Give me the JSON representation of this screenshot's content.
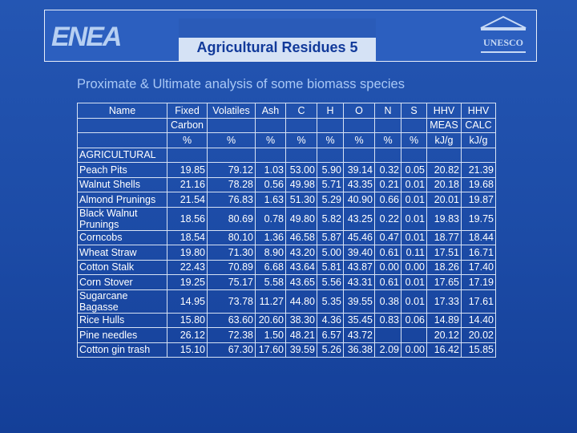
{
  "header": {
    "title": "Agricultural Residues 5",
    "logo_left": "ENEA",
    "logo_right": "UNESCO"
  },
  "subtitle": "Proximate & Ultimate analysis of some biomass species",
  "table": {
    "header": [
      [
        "Name",
        "Fixed",
        "Volatiles",
        "Ash",
        "C",
        "H",
        "O",
        "N",
        "S",
        "HHV",
        "HHV"
      ],
      [
        null,
        "Carbon",
        null,
        null,
        null,
        null,
        null,
        null,
        null,
        "MEAS",
        "CALC"
      ],
      [
        null,
        "%",
        "%",
        "%",
        "%",
        "%",
        "%",
        "%",
        "%",
        "kJ/g",
        "kJ/g"
      ]
    ],
    "section": "AGRICULTURAL",
    "rows": [
      [
        "Peach Pits",
        "19.85",
        "79.12",
        "1.03",
        "53.00",
        "5.90",
        "39.14",
        "0.32",
        "0.05",
        "20.82",
        "21.39"
      ],
      [
        "Walnut Shells",
        "21.16",
        "78.28",
        "0.56",
        "49.98",
        "5.71",
        "43.35",
        "0.21",
        "0.01",
        "20.18",
        "19.68"
      ],
      [
        "Almond Prunings",
        "21.54",
        "76.83",
        "1.63",
        "51.30",
        "5.29",
        "40.90",
        "0.66",
        "0.01",
        "20.01",
        "19.87"
      ],
      [
        "Black Walnut Prunings",
        "18.56",
        "80.69",
        "0.78",
        "49.80",
        "5.82",
        "43.25",
        "0.22",
        "0.01",
        "19.83",
        "19.75"
      ],
      [
        "Corncobs",
        "18.54",
        "80.10",
        "1.36",
        "46.58",
        "5.87",
        "45.46",
        "0.47",
        "0.01",
        "18.77",
        "18.44"
      ],
      [
        "Wheat Straw",
        "19.80",
        "71.30",
        "8.90",
        "43.20",
        "5.00",
        "39.40",
        "0.61",
        "0.11",
        "17.51",
        "16.71"
      ],
      [
        "Cotton Stalk",
        "22.43",
        "70.89",
        "6.68",
        "43.64",
        "5.81",
        "43.87",
        "0.00",
        "0.00",
        "18.26",
        "17.40"
      ],
      [
        "Corn Stover",
        "19.25",
        "75.17",
        "5.58",
        "43.65",
        "5.56",
        "43.31",
        "0.61",
        "0.01",
        "17.65",
        "17.19"
      ],
      [
        "Sugarcane Bagasse",
        "14.95",
        "73.78",
        "11.27",
        "44.80",
        "5.35",
        "39.55",
        "0.38",
        "0.01",
        "17.33",
        "17.61"
      ],
      [
        "Rice Hulls",
        "15.80",
        "63.60",
        "20.60",
        "38.30",
        "4.36",
        "35.45",
        "0.83",
        "0.06",
        "14.89",
        "14.40"
      ],
      [
        "Pine needles",
        "26.12",
        "72.38",
        "1.50",
        "48.21",
        "6.57",
        "43.72",
        null,
        null,
        "20.12",
        "20.02"
      ],
      [
        "Cotton gin trash",
        "15.10",
        "67.30",
        "17.60",
        "39.59",
        "5.26",
        "36.38",
        "2.09",
        "0.00",
        "16.42",
        "15.85"
      ]
    ]
  }
}
